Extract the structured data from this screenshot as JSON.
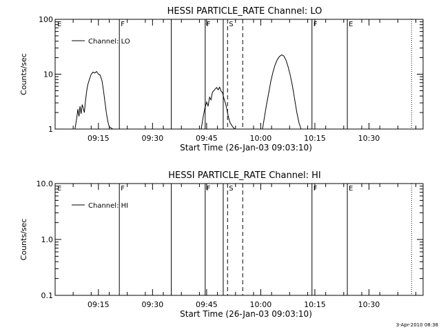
{
  "footer": {
    "timestamp": "3-Apr-2010 08:38"
  },
  "chart_data": [
    {
      "type": "line",
      "title": "HESSI PARTICLE_RATE Channel: LO",
      "xlabel": "Start Time (26-Jan-03 09:03:10)",
      "ylabel": "Counts/sec",
      "yscale": "log",
      "ylim": [
        1,
        100
      ],
      "yticks": [
        1,
        10,
        100
      ],
      "yticklabels": [
        "1",
        "10",
        "100"
      ],
      "xlim_minutes": [
        0,
        102
      ],
      "xticks": [
        12,
        27,
        42,
        57,
        72,
        87
      ],
      "xticklabels": [
        "09:15",
        "09:30",
        "09:45",
        "10:00",
        "10:15",
        "10:30"
      ],
      "legend": {
        "placement": "top-left",
        "entries": [
          "Channel: LO"
        ]
      },
      "series": [
        {
          "name": "Channel: LO",
          "x": [
            5.5,
            6.0,
            6.3,
            6.6,
            6.9,
            7.2,
            7.5,
            7.8,
            8.1,
            8.4,
            8.7,
            9.0,
            9.5,
            10.0,
            10.5,
            11.0,
            11.5,
            12.0,
            12.5,
            13.0,
            13.4,
            13.8,
            14.2,
            14.6,
            15.0,
            16.0,
            40.5,
            41.0,
            41.5,
            42.0,
            42.4,
            42.8,
            43.2,
            43.6,
            44.0,
            44.4,
            44.8,
            45.2,
            45.6,
            46.0,
            46.4,
            46.8,
            47.2,
            47.6,
            48.0,
            48.5,
            49.2,
            49.8,
            57.5,
            58.0,
            58.6,
            59.2,
            59.8,
            60.4,
            61.0,
            61.6,
            62.2,
            62.8,
            63.4,
            64.0,
            64.6,
            65.2,
            65.8,
            66.4,
            67.0,
            67.6,
            68.2
          ],
          "y": [
            1.0,
            1.6,
            2.3,
            1.7,
            2.6,
            1.9,
            2.8,
            2.4,
            2.0,
            3.2,
            4.6,
            6.2,
            8.0,
            10.0,
            10.9,
            10.5,
            11.2,
            10.0,
            9.6,
            7.5,
            5.0,
            3.2,
            2.0,
            1.4,
            1.1,
            1.0,
            1.0,
            1.6,
            2.4,
            3.1,
            2.6,
            3.8,
            3.4,
            4.7,
            5.0,
            5.4,
            5.7,
            5.2,
            5.8,
            4.9,
            4.6,
            3.6,
            3.0,
            2.3,
            1.7,
            1.3,
            1.1,
            1.0,
            1.0,
            1.6,
            2.8,
            4.5,
            7.5,
            11.0,
            15.0,
            18.5,
            21.0,
            22.5,
            21.5,
            18.0,
            13.5,
            9.5,
            6.0,
            3.5,
            2.0,
            1.3,
            1.0
          ]
        }
      ],
      "annotations": [
        {
          "label": "E",
          "x": 0.2,
          "style": "none"
        },
        {
          "label": "F",
          "x": 17.8,
          "style": "solid"
        },
        {
          "label": "",
          "x": 32.2,
          "style": "solid"
        },
        {
          "label": "F",
          "x": 41.6,
          "style": "solid"
        },
        {
          "label": "",
          "x": 46.6,
          "style": "solid"
        },
        {
          "label": "S",
          "x": 47.8,
          "style": "dashed"
        },
        {
          "label": "",
          "x": 52.0,
          "style": "dashed"
        },
        {
          "label": "F",
          "x": 71.2,
          "style": "solid"
        },
        {
          "label": "E",
          "x": 81.0,
          "style": "solid"
        },
        {
          "label": "",
          "x": 98.8,
          "style": "dotted"
        }
      ]
    },
    {
      "type": "line",
      "title": "HESSI PARTICLE_RATE Channel: HI",
      "xlabel": "Start Time (26-Jan-03 09:03:10)",
      "ylabel": "Counts/sec",
      "yscale": "log",
      "ylim": [
        0.1,
        10
      ],
      "yticks": [
        0.1,
        1,
        10
      ],
      "yticklabels": [
        "0.1",
        "1.0",
        "10.0"
      ],
      "xlim_minutes": [
        0,
        102
      ],
      "xticks": [
        12,
        27,
        42,
        57,
        72,
        87
      ],
      "xticklabels": [
        "09:15",
        "09:30",
        "09:45",
        "10:00",
        "10:15",
        "10:30"
      ],
      "legend": {
        "placement": "top-left",
        "entries": [
          "Channel: HI"
        ]
      },
      "series": [
        {
          "name": "Channel: HI",
          "x": [],
          "y": []
        }
      ],
      "annotations": [
        {
          "label": "E",
          "x": 0.2,
          "style": "none"
        },
        {
          "label": "F",
          "x": 17.8,
          "style": "solid"
        },
        {
          "label": "",
          "x": 32.2,
          "style": "solid"
        },
        {
          "label": "F",
          "x": 41.6,
          "style": "solid"
        },
        {
          "label": "",
          "x": 46.6,
          "style": "solid"
        },
        {
          "label": "S",
          "x": 47.8,
          "style": "dashed"
        },
        {
          "label": "",
          "x": 52.0,
          "style": "dashed"
        },
        {
          "label": "F",
          "x": 71.2,
          "style": "solid"
        },
        {
          "label": "E",
          "x": 81.0,
          "style": "solid"
        },
        {
          "label": "",
          "x": 98.8,
          "style": "dotted"
        }
      ]
    }
  ]
}
